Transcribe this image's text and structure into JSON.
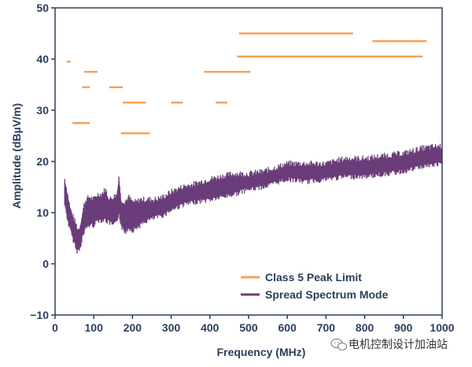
{
  "chart_data": {
    "type": "line",
    "xlabel": "Frequency (MHz)",
    "ylabel": "Amplitude (dBµV/m)",
    "xlim": [
      0,
      1000
    ],
    "ylim": [
      -10,
      50
    ],
    "x_ticks": [
      0,
      100,
      200,
      300,
      400,
      500,
      600,
      700,
      800,
      900,
      1000
    ],
    "y_ticks": [
      -10,
      0,
      10,
      20,
      30,
      40,
      50
    ],
    "grid": false,
    "legend_position": "bottom-right",
    "colors": {
      "limit": "#f5a25d",
      "spectrum": "#6a3d7a",
      "axis": "#2b3e5c"
    },
    "series": [
      {
        "name": "Class 5 Peak Limit",
        "style": "segments",
        "segments": [
          [
            30,
            40,
            39.5
          ],
          [
            75,
            110,
            37.5
          ],
          [
            70,
            90,
            34.5
          ],
          [
            140,
            175,
            34.5
          ],
          [
            45,
            90,
            27.5
          ],
          [
            175,
            235,
            31.5
          ],
          [
            170,
            245,
            25.5
          ],
          [
            300,
            330,
            31.5
          ],
          [
            385,
            505,
            37.5
          ],
          [
            415,
            445,
            31.5
          ],
          [
            475,
            770,
            45
          ],
          [
            470,
            950,
            40.5
          ],
          [
            820,
            960,
            43.5
          ]
        ]
      },
      {
        "name": "Spread Spectrum Mode",
        "style": "band",
        "x": [
          25,
          30,
          35,
          40,
          45,
          50,
          55,
          60,
          65,
          70,
          75,
          80,
          90,
          100,
          110,
          120,
          130,
          140,
          150,
          160,
          165,
          170,
          180,
          190,
          200,
          210,
          220,
          240,
          260,
          280,
          300,
          330,
          360,
          400,
          430,
          460,
          500,
          540,
          580,
          600,
          650,
          700,
          750,
          800,
          850,
          900,
          950,
          1000
        ],
        "upper": [
          16,
          14,
          12,
          10,
          9,
          8,
          7,
          6,
          7,
          9,
          11,
          12,
          12.5,
          12,
          13,
          13,
          14,
          12,
          12.5,
          13,
          16.5,
          12,
          11.5,
          12.5,
          11.5,
          11.5,
          12,
          12,
          12,
          12.5,
          13.5,
          14.5,
          15,
          16,
          16.5,
          17,
          17,
          17.5,
          18.5,
          19,
          19,
          19,
          20,
          20,
          20.5,
          21,
          22,
          22.5
        ],
        "lower": [
          12,
          10,
          8,
          7,
          5.5,
          4.5,
          3,
          3,
          3.5,
          5.5,
          6.5,
          7.5,
          8,
          8,
          9,
          9,
          9,
          8.5,
          8,
          8.5,
          10.5,
          8,
          6.5,
          7.5,
          7,
          7.5,
          8,
          9,
          9.5,
          10,
          11,
          12,
          12.5,
          13,
          13.5,
          14,
          15,
          15.5,
          16.5,
          17,
          16.5,
          17,
          17.5,
          17.5,
          18,
          18.5,
          19.5,
          20
        ]
      }
    ]
  },
  "watermark": {
    "text": "电机控制设计加油站"
  }
}
